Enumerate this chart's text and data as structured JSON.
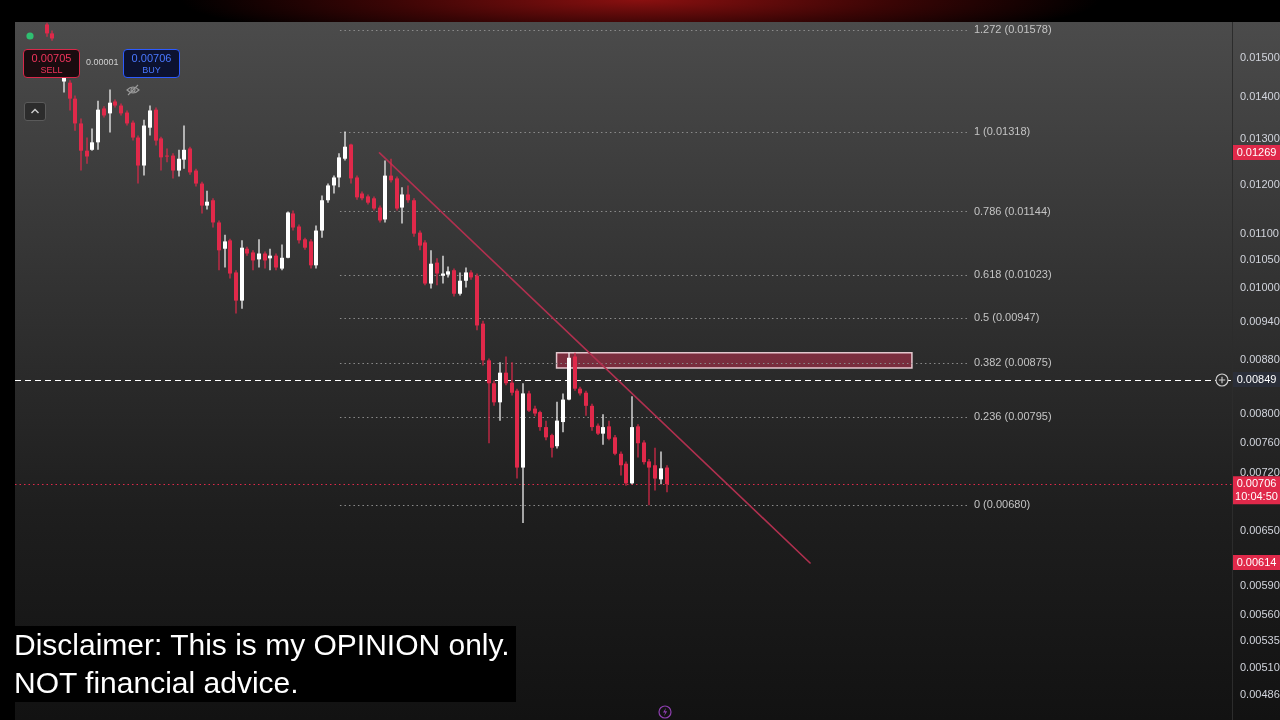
{
  "chart_data": {
    "type": "candlestick",
    "categories": [
      null,
      null,
      null,
      null,
      null,
      null,
      null,
      null,
      null,
      null,
      null,
      null,
      null,
      null,
      null,
      null,
      null,
      null,
      null,
      null,
      null,
      null,
      null,
      null,
      null,
      null,
      null,
      null,
      null,
      null,
      null,
      null,
      null,
      null,
      null,
      null,
      null,
      null,
      null,
      null,
      null,
      null,
      null,
      null,
      null,
      null,
      null,
      null,
      null,
      null,
      null,
      null,
      null,
      null,
      null,
      null,
      null,
      null,
      null,
      null,
      null,
      null,
      null,
      null,
      null,
      null,
      null,
      null,
      null,
      null,
      null,
      null,
      null,
      null,
      null,
      null,
      null,
      null,
      null,
      null,
      null,
      null,
      null,
      null,
      null,
      null,
      null,
      null,
      null,
      null,
      null,
      null,
      null,
      null,
      null,
      null,
      null,
      null,
      null,
      null,
      null,
      null,
      null,
      null,
      null,
      null,
      null,
      null,
      null,
      null,
      null,
      null,
      null,
      null,
      null,
      null,
      null,
      null,
      null,
      null,
      null,
      null,
      null,
      null,
      null,
      null,
      null,
      null,
      null,
      null,
      null,
      null,
      null,
      null,
      null,
      null,
      null,
      null,
      null,
      null,
      null,
      null,
      null,
      null,
      null,
      null,
      null,
      null,
      null,
      null,
      null,
      null,
      null,
      null,
      null,
      null,
      null,
      null,
      null,
      null,
      null,
      null,
      null,
      null,
      null,
      null,
      null,
      null,
      null,
      null,
      null,
      null,
      null,
      null,
      null,
      null,
      null,
      null,
      null,
      null,
      null,
      null,
      null,
      null,
      null,
      null,
      null,
      null,
      null,
      null,
      null,
      null,
      null,
      null,
      null,
      null,
      null,
      null,
      null,
      null,
      null,
      null,
      null,
      null,
      null,
      null,
      null,
      null,
      null,
      null,
      null,
      null
    ],
    "ohlc": [
      null,
      null,
      null,
      null,
      null,
      [
        0.01593,
        0.01598,
        0.01559,
        0.01568
      ],
      [
        0.01568,
        0.01576,
        0.01548,
        0.01554
      ],
      null,
      [
        0.0144,
        0.01453,
        0.01412,
        0.0145
      ],
      [
        0.01437,
        0.01443,
        0.01368,
        0.01397
      ],
      [
        0.01397,
        0.01405,
        0.0132,
        0.01337
      ],
      [
        0.01337,
        0.01349,
        0.0123,
        0.01274
      ],
      [
        0.01274,
        0.01304,
        0.01245,
        0.01261
      ],
      [
        0.01276,
        0.01325,
        0.01274,
        0.01293
      ],
      [
        0.01293,
        0.01392,
        0.01276,
        0.0137
      ],
      [
        0.01373,
        0.01378,
        0.01351,
        0.01356
      ],
      [
        0.01361,
        0.0142,
        0.01316,
        0.01387
      ],
      [
        0.0139,
        0.01395,
        0.01375,
        0.0138
      ],
      [
        0.0138,
        0.01385,
        0.01356,
        0.01361
      ],
      [
        0.01363,
        0.01368,
        0.01332,
        0.01337
      ],
      [
        0.01339,
        0.01344,
        0.01297,
        0.01304
      ],
      [
        0.01304,
        0.01309,
        0.01202,
        0.01241
      ],
      [
        0.01241,
        0.01346,
        0.01219,
        0.01332
      ],
      [
        0.01327,
        0.0138,
        0.01309,
        0.01368
      ],
      [
        0.0137,
        0.01375,
        0.01286,
        0.01297
      ],
      [
        0.01302,
        0.01306,
        0.0123,
        0.01259
      ],
      [
        0.01263,
        0.01279,
        0.01248,
        0.01261
      ],
      [
        0.01263,
        0.01268,
        0.01213,
        0.0123
      ],
      [
        0.0123,
        0.01276,
        0.01217,
        0.01256
      ],
      [
        0.01254,
        0.01332,
        0.01234,
        0.01276
      ],
      [
        0.01279,
        0.01283,
        0.01221,
        0.01226
      ],
      [
        0.0123,
        0.01234,
        0.01196,
        0.01202
      ],
      [
        0.01202,
        0.01206,
        0.0114,
        0.01156
      ],
      [
        0.01156,
        0.01187,
        0.01148,
        0.01164
      ],
      [
        0.01167,
        0.01171,
        0.01112,
        0.01122
      ],
      [
        0.01122,
        0.01126,
        0.01031,
        0.01068
      ],
      [
        0.01071,
        0.01098,
        0.01036,
        0.01085
      ],
      [
        0.01087,
        0.0109,
        0.01016,
        0.01025
      ],
      [
        0.01027,
        0.01031,
        0.00955,
        0.00977
      ],
      [
        0.00977,
        0.01087,
        0.00963,
        0.01073
      ],
      [
        0.01071,
        0.01075,
        0.01058,
        0.01062
      ],
      [
        0.01064,
        0.01068,
        0.01031,
        0.01049
      ],
      [
        0.01051,
        0.01089,
        0.01036,
        0.01062
      ],
      [
        0.01062,
        0.01066,
        0.01034,
        0.01049
      ],
      [
        0.01053,
        0.01071,
        0.01031,
        0.01058
      ],
      [
        0.01058,
        0.01062,
        0.01031,
        0.01036
      ],
      [
        0.01034,
        0.01079,
        0.01031,
        0.01054
      ],
      [
        0.01054,
        0.01144,
        0.01053,
        0.01142
      ],
      [
        0.0114,
        0.01146,
        0.01106,
        0.01112
      ],
      [
        0.01114,
        0.01118,
        0.01081,
        0.01087
      ],
      [
        0.01089,
        0.01092,
        0.01069,
        0.01073
      ],
      [
        0.01085,
        0.01089,
        0.01034,
        0.0104
      ],
      [
        0.0104,
        0.01116,
        0.01034,
        0.01106
      ],
      [
        0.01106,
        0.01177,
        0.01092,
        0.01167
      ],
      [
        0.01167,
        0.01202,
        0.01162,
        0.01198
      ],
      [
        0.01198,
        0.01219,
        0.01181,
        0.01215
      ],
      [
        0.01215,
        0.01268,
        0.01194,
        0.01259
      ],
      [
        0.01256,
        0.01318,
        0.01252,
        0.01283
      ],
      [
        0.01288,
        0.0129,
        0.01202,
        0.01213
      ],
      [
        0.01215,
        0.01219,
        0.01168,
        0.01173
      ],
      [
        0.01181,
        0.01185,
        0.01167,
        0.01171
      ],
      [
        0.01175,
        0.01179,
        0.01158,
        0.01162
      ],
      [
        0.01171,
        0.01175,
        0.01146,
        0.0115
      ],
      [
        0.01152,
        0.01156,
        0.01122,
        0.01126
      ],
      [
        0.01128,
        0.01252,
        0.01122,
        0.01219
      ],
      [
        0.01219,
        0.01256,
        0.01204,
        0.01209
      ],
      [
        0.01213,
        0.01217,
        0.01146,
        0.0115
      ],
      [
        0.01152,
        0.01194,
        0.0112,
        0.01179
      ],
      [
        0.01179,
        0.01198,
        0.01162,
        0.01167
      ],
      [
        0.01167,
        0.01171,
        0.01094,
        0.011
      ],
      [
        0.01102,
        0.01106,
        0.01068,
        0.01077
      ],
      [
        0.01083,
        0.01087,
        0.01004,
        0.01007
      ],
      [
        0.01007,
        0.01068,
        0.00998,
        0.01043
      ],
      [
        0.01045,
        0.01053,
        0.01004,
        0.01025
      ],
      [
        0.01021,
        0.01058,
        0.01007,
        0.01025
      ],
      [
        0.01023,
        0.01038,
        0.01018,
        0.01029
      ],
      [
        0.01031,
        0.01034,
        0.00984,
        0.00989
      ],
      [
        0.00989,
        0.01027,
        0.00986,
        0.01012
      ],
      [
        0.01012,
        0.01036,
        0.01,
        0.01027
      ],
      [
        0.01027,
        0.01031,
        0.01014,
        0.01018
      ],
      [
        0.01021,
        0.01025,
        0.00927,
        0.00935
      ],
      [
        0.00938,
        0.00943,
        0.00871,
        0.00879
      ],
      [
        0.00879,
        0.00882,
        0.00759,
        0.00844
      ],
      [
        0.00844,
        0.00848,
        0.00811,
        0.00816
      ],
      [
        0.00816,
        0.00876,
        0.0079,
        0.0086
      ],
      [
        0.0086,
        0.00885,
        0.00841,
        0.00844
      ],
      [
        0.00845,
        0.00876,
        0.00826,
        0.0083
      ],
      [
        0.00833,
        0.00836,
        0.00713,
        0.00727
      ],
      [
        0.00727,
        0.00844,
        0.00659,
        0.00829
      ],
      [
        0.00829,
        0.00833,
        0.00802,
        0.00804
      ],
      [
        0.00807,
        0.00811,
        0.00796,
        0.008
      ],
      [
        0.00802,
        0.00804,
        0.00776,
        0.00781
      ],
      [
        0.00781,
        0.0079,
        0.00763,
        0.00767
      ],
      [
        0.0077,
        0.00772,
        0.0074,
        0.00753
      ],
      [
        0.00755,
        0.00817,
        0.00752,
        0.0079
      ],
      [
        0.00788,
        0.00829,
        0.00774,
        0.0082
      ],
      [
        0.0082,
        0.00891,
        0.00819,
        0.00883
      ],
      [
        0.00885,
        0.00891,
        0.00833,
        0.00836
      ],
      [
        0.00836,
        0.00839,
        0.00826,
        0.00829
      ],
      [
        0.0083,
        0.00833,
        0.00797,
        0.00811
      ],
      [
        0.00811,
        0.00814,
        0.00776,
        0.00781
      ],
      [
        0.00783,
        0.00786,
        0.0077,
        0.00772
      ],
      [
        0.00772,
        0.00799,
        0.00757,
        0.00781
      ],
      [
        0.00782,
        0.0079,
        0.00763,
        0.00765
      ],
      [
        0.00767,
        0.0077,
        0.00743,
        0.00745
      ],
      [
        0.00745,
        0.00748,
        0.00717,
        0.0073
      ],
      [
        0.00732,
        0.00735,
        0.00704,
        0.00707
      ],
      [
        0.00707,
        0.00825,
        0.00706,
        0.00781
      ],
      [
        0.00782,
        0.00785,
        0.0074,
        0.00759
      ],
      [
        0.0076,
        0.00763,
        0.00731,
        0.00734
      ],
      [
        0.00735,
        0.00738,
        0.0068,
        0.00727
      ],
      [
        0.0073,
        0.00753,
        0.00698,
        0.00713
      ],
      [
        0.00712,
        0.00748,
        0.00706,
        0.00726
      ],
      [
        0.00727,
        0.0073,
        0.00696,
        0.00706
      ],
      null,
      null,
      null,
      null,
      null,
      null,
      null,
      null,
      null,
      null,
      null,
      null,
      null,
      null,
      null,
      null,
      null,
      null,
      null,
      null,
      null,
      null,
      null,
      null,
      null,
      null,
      null,
      null,
      null,
      null,
      null,
      null,
      null,
      null,
      null,
      null,
      null,
      null,
      null,
      null,
      null,
      null,
      null,
      null,
      null,
      null,
      null,
      null,
      null,
      null,
      null,
      null,
      null,
      null,
      null,
      null,
      null,
      null,
      null,
      null,
      null,
      null,
      null,
      null,
      null,
      null,
      null,
      null,
      null,
      null,
      null,
      null,
      null,
      null,
      null,
      null,
      null,
      null,
      null,
      null,
      null,
      null,
      null,
      null,
      null,
      null,
      null,
      null,
      null,
      null,
      null,
      null,
      null,
      null,
      null,
      null,
      null,
      null
    ],
    "colors": [
      null,
      null,
      null,
      null,
      null,
      "#e0294a",
      "#e0294a",
      null,
      "#ffffff",
      "#e0294a",
      "#e0294a",
      "#e0294a",
      "#e0294a",
      "#ffffff",
      "#ffffff",
      "#e0294a",
      "#ffffff",
      "#e0294a",
      "#e0294a",
      "#e0294a",
      "#e0294a",
      "#e0294a",
      "#ffffff",
      "#ffffff",
      "#e0294a",
      "#e0294a",
      "#e0294a",
      "#e0294a",
      "#ffffff",
      "#ffffff",
      "#e0294a",
      "#e0294a",
      "#e0294a",
      "#ffffff",
      "#e0294a",
      "#e0294a",
      "#ffffff",
      "#e0294a",
      "#e0294a",
      "#ffffff",
      "#e0294a",
      "#e0294a",
      "#ffffff",
      "#e0294a",
      "#ffffff",
      "#e0294a",
      "#ffffff",
      "#ffffff",
      "#e0294a",
      "#e0294a",
      "#e0294a",
      "#e0294a",
      "#ffffff",
      "#ffffff",
      "#ffffff",
      "#ffffff",
      "#ffffff",
      "#ffffff",
      "#e0294a",
      "#e0294a",
      "#e0294a",
      "#e0294a",
      "#e0294a",
      "#e0294a",
      "#ffffff",
      "#e0294a",
      "#e0294a",
      "#ffffff",
      "#e0294a",
      "#e0294a",
      "#e0294a",
      "#e0294a",
      "#ffffff",
      "#e0294a",
      "#ffffff",
      "#ffffff",
      "#e0294a",
      "#ffffff",
      "#ffffff",
      "#e0294a",
      "#e0294a",
      "#e0294a",
      "#e0294a",
      "#e0294a",
      "#ffffff",
      "#e0294a",
      "#e0294a",
      "#e0294a",
      "#ffffff",
      "#e0294a",
      "#e0294a",
      "#e0294a",
      "#e0294a",
      "#e0294a",
      "#ffffff",
      "#ffffff",
      "#ffffff",
      "#e0294a",
      "#e0294a",
      "#e0294a",
      "#e0294a",
      "#e0294a",
      "#ffffff",
      "#e0294a",
      "#e0294a",
      "#e0294a",
      "#e0294a",
      "#ffffff",
      "#e0294a",
      "#e0294a",
      "#e0294a",
      "#e0294a",
      "#ffffff",
      "#e0294a",
      null,
      null,
      null,
      null,
      null,
      null,
      null,
      null,
      null,
      null,
      null,
      null,
      null,
      null,
      null,
      null,
      null,
      null,
      null,
      null,
      null,
      null,
      null,
      null,
      null,
      null,
      null,
      null,
      null,
      null,
      null,
      null,
      null,
      null,
      null,
      null,
      null,
      null,
      null,
      null,
      null,
      null,
      null,
      null,
      null,
      null,
      null,
      null,
      null,
      null,
      null,
      null,
      null,
      null,
      null,
      null,
      null,
      null,
      null,
      null,
      null,
      null,
      null,
      null,
      null,
      null,
      null,
      null,
      null,
      null,
      null,
      null,
      null,
      null,
      null,
      null,
      null,
      null,
      null,
      null,
      null,
      null,
      null,
      null,
      null,
      null,
      null,
      null,
      null,
      null,
      null,
      null,
      null,
      null,
      null,
      null,
      null,
      null
    ],
    "series": [
      {
        "type": "line",
        "color": "#b0304f",
        "values": [
          null,
          null,
          null,
          null,
          null,
          null,
          null,
          null,
          null,
          null,
          null,
          null,
          null,
          null,
          null,
          null,
          null,
          null,
          null,
          null,
          null,
          null,
          null,
          null,
          null,
          null,
          null,
          null,
          null,
          null,
          null,
          null,
          null,
          null,
          null,
          null,
          null,
          null,
          null,
          null,
          null,
          null,
          null,
          null,
          null,
          null,
          null,
          null,
          null,
          null,
          null,
          null,
          null,
          null,
          null,
          null,
          null,
          null,
          null,
          null,
          null,
          null,
          null,
          0.01269,
          null,
          null,
          null,
          null,
          null,
          null,
          null,
          null,
          null,
          null,
          null,
          null,
          null,
          null,
          null,
          null,
          null,
          null,
          null,
          null,
          null,
          null,
          null,
          null,
          null,
          null,
          null,
          null,
          null,
          null,
          null,
          null,
          null,
          null,
          null,
          null,
          null,
          null,
          null,
          null,
          null,
          null,
          null,
          null,
          null,
          null,
          null,
          null,
          null,
          null,
          null,
          null,
          null,
          null,
          null,
          null,
          null,
          null,
          null,
          null,
          null,
          null,
          null,
          null,
          null,
          null,
          null,
          null,
          null,
          null,
          null,
          null,
          null,
          null,
          0.00614,
          null,
          null,
          null,
          null,
          null,
          null,
          null,
          null,
          null,
          null,
          null,
          null,
          null,
          null,
          null,
          null,
          null,
          null,
          null,
          null,
          null,
          null,
          null,
          null,
          null,
          null,
          null,
          null,
          null,
          null,
          null,
          null,
          null,
          null,
          null,
          null,
          null,
          null,
          null,
          null,
          null,
          null,
          null,
          null,
          null,
          null,
          null,
          null,
          null,
          null,
          null,
          null,
          null,
          null,
          null,
          null,
          null,
          null,
          null,
          null,
          null,
          null,
          null,
          null,
          null,
          null,
          null,
          null,
          null,
          null,
          null,
          null,
          null
        ]
      }
    ],
    "log": true,
    "ylim": [
      0.00465,
      0.016
    ],
    "yticks": [
      {
        "value": 0.015,
        "label": "0.01500"
      },
      {
        "value": 0.014,
        "label": "0.01400"
      },
      {
        "value": 0.013,
        "label": "0.01300"
      },
      {
        "value": 0.012,
        "label": "0.01200"
      },
      {
        "value": 0.011,
        "label": "0.01100"
      },
      {
        "value": 0.0105,
        "label": "0.01050"
      },
      {
        "value": 0.01,
        "label": "0.01000"
      },
      {
        "value": 0.0094,
        "label": "0.00940"
      },
      {
        "value": 0.0088,
        "label": "0.00880"
      },
      {
        "value": 0.008,
        "label": "0.00800"
      },
      {
        "value": 0.0076,
        "label": "0.00760"
      },
      {
        "value": 0.0072,
        "label": "0.00720"
      },
      {
        "value": 0.0065,
        "label": "0.00650"
      },
      {
        "value": 0.0059,
        "label": "0.00590"
      },
      {
        "value": 0.0056,
        "label": "0.00560"
      },
      0.00535,
      {
        "value": 0.0051,
        "label": "0.00510"
      },
      0.00486
    ],
    "tick_labels": "y",
    "ref_lines": [
      {
        "axis": "y",
        "value": 0.01578,
        "label": "1.272 (0.01578)",
        "line_style": "dotted"
      },
      {
        "axis": "y",
        "value": 0.01318,
        "label": "1 (0.01318)",
        "line_style": "dotted"
      },
      {
        "axis": "y",
        "value": 0.01144,
        "label": "0.786 (0.01144)",
        "line_style": "dotted"
      },
      {
        "axis": "y",
        "value": 0.01023,
        "label": "0.618 (0.01023)",
        "line_style": "dotted"
      },
      {
        "axis": "y",
        "value": 0.00947,
        "label": "0.5 (0.00947)",
        "line_style": "dotted"
      },
      {
        "axis": "y",
        "value": 0.00875,
        "label": "0.382 (0.00875)",
        "line_style": "dotted"
      },
      {
        "axis": "y",
        "value": 0.00795,
        "label": "0.236 (0.00795)",
        "line_style": "dotted"
      },
      {
        "axis": "y",
        "value": 0.0068,
        "label": "0 (0.00680)",
        "line_style": "dotted"
      },
      {
        "axis": "y",
        "value": 0.00849,
        "label": "0.00849",
        "color": "#ffffff",
        "line_style": "dashed"
      },
      {
        "axis": "y",
        "value": 0.00706,
        "label": "0.00706\n10:04:50",
        "color": "#e0294a",
        "line_style": "dotted"
      }
    ],
    "bands": [
      {
        "axis": "y",
        "from": 0.00867,
        "to": 0.00891,
        "color": "#c8304f"
      }
    ],
    "annotations": [
      "0.01269",
      "0.00614",
      "Disclaimer: This is my OPINION only.\nNOT financial advice.",
      "0.00705",
      "SELL",
      "0.00001",
      "0.00706",
      "BUY"
    ]
  }
}
